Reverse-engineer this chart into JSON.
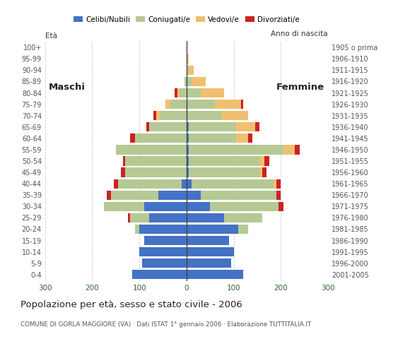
{
  "age_groups": [
    "0-4",
    "5-9",
    "10-14",
    "15-19",
    "20-24",
    "25-29",
    "30-34",
    "35-39",
    "40-44",
    "45-49",
    "50-54",
    "55-59",
    "60-64",
    "65-69",
    "70-74",
    "75-79",
    "80-84",
    "85-89",
    "90-94",
    "95-99",
    "100+"
  ],
  "birth_years": [
    "2001-2005",
    "1996-2000",
    "1991-1995",
    "1986-1990",
    "1981-1985",
    "1976-1980",
    "1971-1975",
    "1966-1970",
    "1961-1965",
    "1956-1960",
    "1951-1955",
    "1946-1950",
    "1941-1945",
    "1936-1940",
    "1931-1935",
    "1926-1930",
    "1921-1925",
    "1916-1920",
    "1911-1915",
    "1906-1910",
    "1905 o prima"
  ],
  "male_celibe": [
    115,
    95,
    100,
    90,
    100,
    80,
    90,
    60,
    10,
    0,
    0,
    0,
    0,
    0,
    0,
    0,
    0,
    0,
    0,
    0,
    0
  ],
  "male_coniugato": [
    0,
    0,
    0,
    0,
    10,
    40,
    85,
    100,
    135,
    130,
    130,
    150,
    110,
    80,
    55,
    35,
    15,
    5,
    0,
    0,
    0
  ],
  "male_vedovo": [
    0,
    0,
    0,
    0,
    0,
    0,
    0,
    0,
    0,
    0,
    0,
    0,
    0,
    0,
    10,
    10,
    5,
    0,
    0,
    0,
    0
  ],
  "male_divorziato": [
    0,
    0,
    0,
    0,
    0,
    5,
    0,
    10,
    10,
    10,
    5,
    0,
    10,
    5,
    5,
    0,
    5,
    0,
    0,
    0,
    0
  ],
  "female_nubile": [
    120,
    95,
    100,
    90,
    110,
    80,
    50,
    30,
    10,
    5,
    5,
    5,
    5,
    5,
    0,
    0,
    0,
    0,
    0,
    0,
    0
  ],
  "female_coniugata": [
    0,
    0,
    0,
    0,
    20,
    80,
    145,
    160,
    175,
    150,
    150,
    200,
    100,
    100,
    75,
    60,
    30,
    10,
    5,
    0,
    0
  ],
  "female_vedova": [
    0,
    0,
    0,
    0,
    0,
    0,
    0,
    0,
    5,
    5,
    10,
    25,
    25,
    40,
    55,
    55,
    50,
    30,
    10,
    5,
    0
  ],
  "female_divorziata": [
    0,
    0,
    0,
    0,
    0,
    0,
    10,
    10,
    10,
    10,
    10,
    10,
    10,
    10,
    0,
    5,
    0,
    0,
    0,
    0,
    0
  ],
  "color_celibe": "#4472c4",
  "color_coniugato": "#b5c994",
  "color_vedovo": "#f0c070",
  "color_divorziato": "#cc2222",
  "title": "Popolazione per età, sesso e stato civile - 2006",
  "subtitle": "COMUNE DI GORLA MAGGIORE (VA) · Dati ISTAT 1° gennaio 2006 · Elaborazione TUTTITALIA.IT",
  "xlim": 300,
  "bg_color": "#ffffff"
}
